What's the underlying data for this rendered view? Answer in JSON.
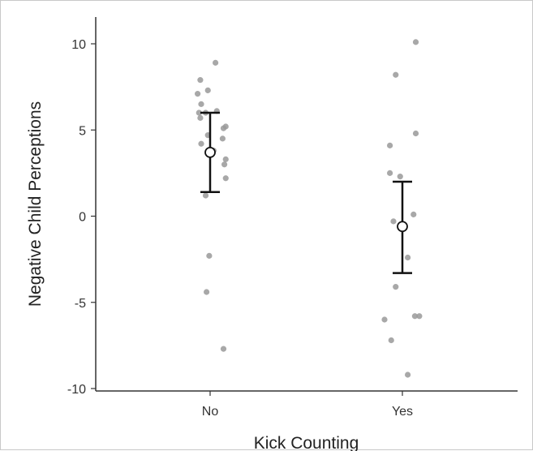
{
  "chart_data": {
    "type": "scatter",
    "xlabel": "Kick Counting",
    "ylabel": "Negative Child Perceptions",
    "categories": [
      "No",
      "Yes"
    ],
    "ylim": [
      -10,
      10
    ],
    "yticks": [
      -10,
      -5,
      0,
      5,
      10
    ],
    "grid": false,
    "colors": {
      "points": "#999999",
      "error_bars": "#111111",
      "mean_fill": "#ffffff",
      "axis": "#333333"
    },
    "means": [
      {
        "category": "No",
        "mean": 3.7,
        "lower": 1.4,
        "upper": 6.0
      },
      {
        "category": "Yes",
        "mean": -0.6,
        "lower": -3.3,
        "upper": 2.0
      }
    ],
    "points": [
      {
        "category": "No",
        "jitter": 0.12,
        "y": 8.9
      },
      {
        "category": "No",
        "jitter": -0.22,
        "y": 7.9
      },
      {
        "category": "No",
        "jitter": -0.05,
        "y": 7.3
      },
      {
        "category": "No",
        "jitter": -0.28,
        "y": 7.1
      },
      {
        "category": "No",
        "jitter": -0.2,
        "y": 6.5
      },
      {
        "category": "No",
        "jitter": -0.25,
        "y": 6.0
      },
      {
        "category": "No",
        "jitter": -0.1,
        "y": 6.0
      },
      {
        "category": "No",
        "jitter": 0.15,
        "y": 6.1
      },
      {
        "category": "No",
        "jitter": -0.22,
        "y": 5.7
      },
      {
        "category": "No",
        "jitter": 0.35,
        "y": 5.2
      },
      {
        "category": "No",
        "jitter": 0.3,
        "y": 5.1
      },
      {
        "category": "No",
        "jitter": -0.05,
        "y": 4.7
      },
      {
        "category": "No",
        "jitter": 0.28,
        "y": 4.5
      },
      {
        "category": "No",
        "jitter": -0.2,
        "y": 4.2
      },
      {
        "category": "No",
        "jitter": 0.08,
        "y": 3.8
      },
      {
        "category": "No",
        "jitter": 0.35,
        "y": 3.3
      },
      {
        "category": "No",
        "jitter": 0.32,
        "y": 3.0
      },
      {
        "category": "No",
        "jitter": 0.35,
        "y": 2.2
      },
      {
        "category": "No",
        "jitter": -0.1,
        "y": 1.2
      },
      {
        "category": "No",
        "jitter": -0.02,
        "y": -2.3
      },
      {
        "category": "No",
        "jitter": -0.08,
        "y": -4.4
      },
      {
        "category": "No",
        "jitter": 0.3,
        "y": -7.7
      },
      {
        "category": "Yes",
        "jitter": 0.3,
        "y": 10.1
      },
      {
        "category": "Yes",
        "jitter": -0.15,
        "y": 8.2
      },
      {
        "category": "Yes",
        "jitter": 0.3,
        "y": 4.8
      },
      {
        "category": "Yes",
        "jitter": -0.28,
        "y": 4.1
      },
      {
        "category": "Yes",
        "jitter": -0.28,
        "y": 2.5
      },
      {
        "category": "Yes",
        "jitter": -0.05,
        "y": 2.3
      },
      {
        "category": "Yes",
        "jitter": 0.25,
        "y": 0.1
      },
      {
        "category": "Yes",
        "jitter": -0.2,
        "y": -0.3
      },
      {
        "category": "Yes",
        "jitter": 0.12,
        "y": -2.4
      },
      {
        "category": "Yes",
        "jitter": -0.15,
        "y": -4.1
      },
      {
        "category": "Yes",
        "jitter": -0.4,
        "y": -6.0
      },
      {
        "category": "Yes",
        "jitter": 0.28,
        "y": -5.8
      },
      {
        "category": "Yes",
        "jitter": 0.38,
        "y": -5.8
      },
      {
        "category": "Yes",
        "jitter": -0.25,
        "y": -7.2
      },
      {
        "category": "Yes",
        "jitter": 0.12,
        "y": -9.2
      }
    ]
  }
}
